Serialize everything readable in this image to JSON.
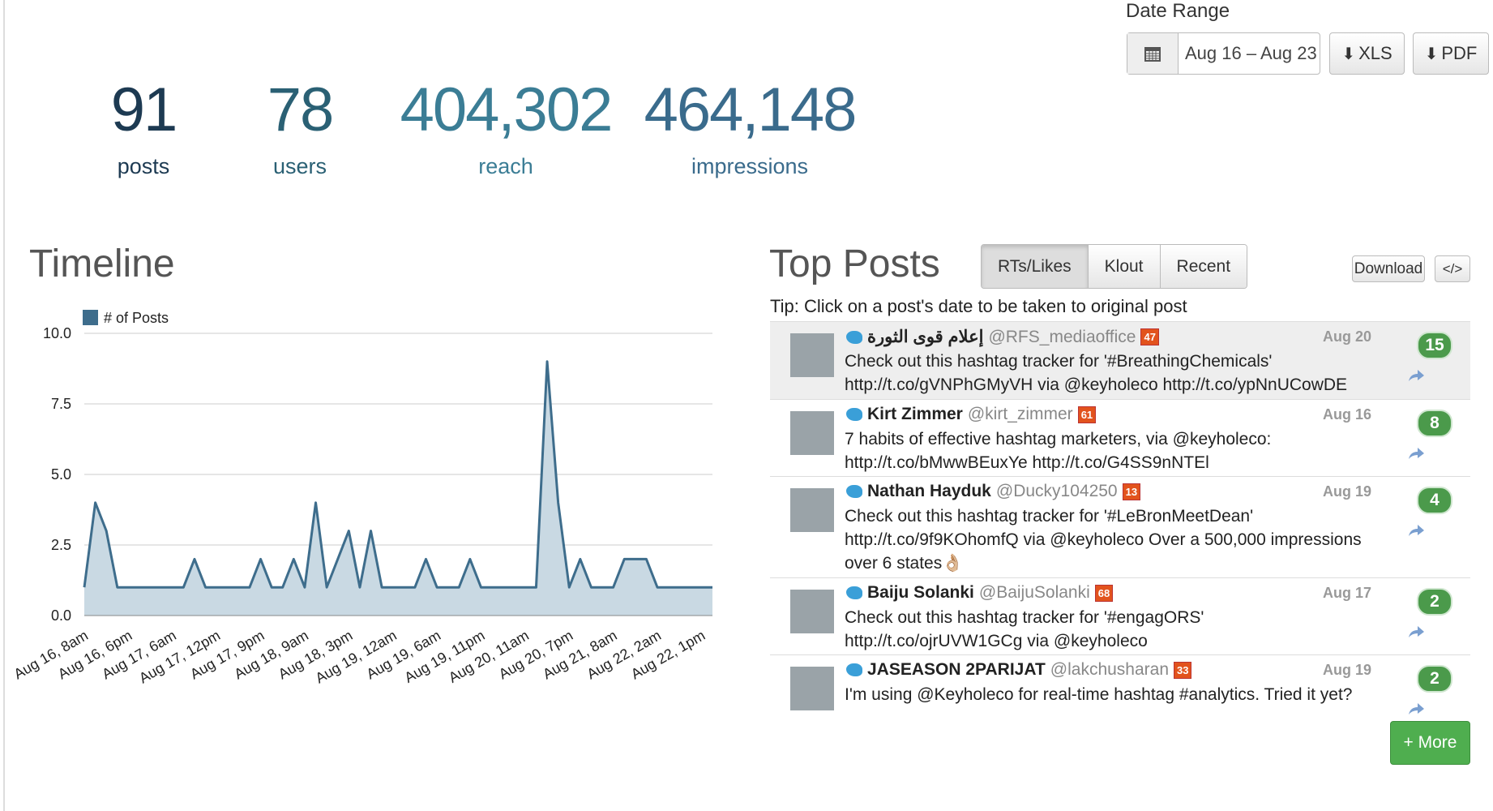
{
  "stats": [
    {
      "value": "91",
      "label": "posts"
    },
    {
      "value": "78",
      "label": "users"
    },
    {
      "value": "404,302",
      "label": "reach"
    },
    {
      "value": "464,148",
      "label": "impressions"
    }
  ],
  "date_range": {
    "label": "Date Range",
    "value": "Aug 16 – Aug 23",
    "xls": "XLS",
    "pdf": "PDF"
  },
  "chart_data": {
    "type": "line",
    "title": "Timeline",
    "categories": [
      "Aug 16, 8am",
      null,
      null,
      null,
      "Aug 16, 6pm",
      null,
      null,
      null,
      "Aug 17, 6am",
      null,
      null,
      null,
      "Aug 17, 12pm",
      null,
      null,
      null,
      "Aug 17, 9pm",
      null,
      null,
      null,
      "Aug 18, 9am",
      null,
      null,
      null,
      "Aug 18, 3pm",
      null,
      null,
      null,
      "Aug 19, 12am",
      null,
      null,
      null,
      "Aug 19, 6am",
      null,
      null,
      null,
      "Aug 19, 11pm",
      null,
      null,
      null,
      "Aug 20, 11am",
      null,
      null,
      null,
      "Aug 20, 7pm",
      null,
      null,
      null,
      "Aug 21, 8am",
      null,
      null,
      null,
      "Aug 22, 2am",
      null,
      null,
      null,
      "Aug 22, 1pm",
      null
    ],
    "series": [
      {
        "name": "# of Posts",
        "color": "#3e6d8c",
        "fill": "#c9d9e3",
        "values": [
          1,
          4,
          3,
          1,
          1,
          1,
          1,
          1,
          1,
          1,
          2,
          1,
          1,
          1,
          1,
          1,
          2,
          1,
          1,
          2,
          1,
          4,
          1,
          2,
          3,
          1,
          3,
          1,
          1,
          1,
          1,
          2,
          1,
          1,
          1,
          2,
          1,
          1,
          1,
          1,
          1,
          1,
          9,
          4,
          1,
          2,
          1,
          1,
          1,
          2,
          2,
          2,
          1,
          1,
          1,
          1,
          1,
          1
        ]
      }
    ],
    "ylim": [
      0,
      10
    ],
    "yticks": [
      {
        "value": 0,
        "label": "0.0"
      },
      {
        "value": 2.5,
        "label": "2.5"
      },
      {
        "value": 5,
        "label": "5.0"
      },
      {
        "value": 7.5,
        "label": "7.5"
      },
      {
        "value": 10,
        "label": "10.0"
      }
    ],
    "grid": true,
    "legend": "top-left"
  },
  "top_posts": {
    "title": "Top Posts",
    "tabs": [
      "RTs/Likes",
      "Klout",
      "Recent"
    ],
    "download": "Download",
    "embed": "</>",
    "tip": "Tip: Click on a post's date to be taken to original post",
    "posts": [
      {
        "name": "إعلام قوى الثورة",
        "handle": "@RFS_mediaoffice",
        "klout": "47",
        "date": "Aug 20",
        "text": [
          "Check out this hashtag tracker for '#BreathingChemicals'",
          "http://t.co/gVNPhGMyVH via @keyholeco http://t.co/ypNnUCowDE"
        ],
        "count": "15"
      },
      {
        "name": "Kirt Zimmer",
        "handle": "@kirt_zimmer",
        "klout": "61",
        "date": "Aug 16",
        "text": [
          "7 habits of effective hashtag marketers, via @keyholeco:",
          "http://t.co/bMwwBEuxYe http://t.co/G4SS9nNTEl"
        ],
        "count": "8"
      },
      {
        "name": "Nathan Hayduk",
        "handle": "@Ducky104250",
        "klout": "13",
        "date": "Aug 19",
        "text": [
          "Check out this hashtag tracker for '#LeBronMeetDean'",
          "http://t.co/9f9KOhomfQ via @keyholeco Over a 500,000 impressions",
          "over 6 states👌🏼"
        ],
        "count": "4"
      },
      {
        "name": "Baiju Solanki",
        "handle": "@BaijuSolanki",
        "klout": "68",
        "date": "Aug 17",
        "text": [
          "Check out this hashtag tracker for '#engagORS'",
          "http://t.co/ojrUVW1GCg via @keyholeco"
        ],
        "count": "2"
      },
      {
        "name": "JASEASON 2PARIJAT",
        "handle": "@lakchusharan",
        "klout": "33",
        "date": "Aug 19",
        "text": [
          "I'm using @Keyholeco for real-time hashtag #analytics. Tried it yet?"
        ],
        "count": "2"
      }
    ],
    "more": "+ More"
  }
}
